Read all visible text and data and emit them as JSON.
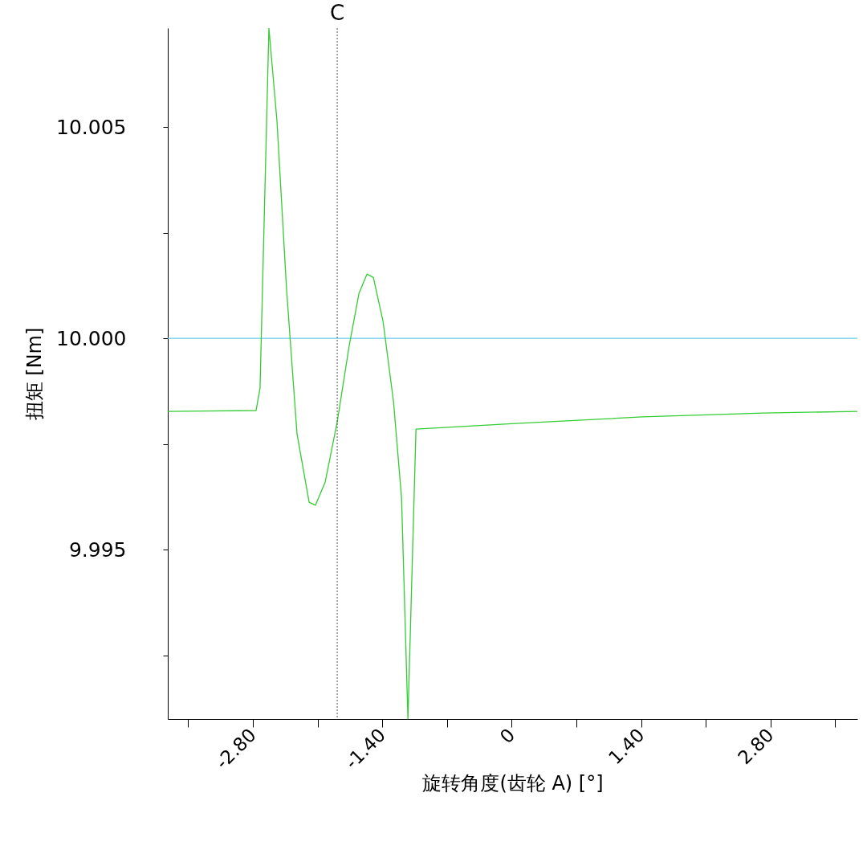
{
  "chart_data": {
    "type": "line",
    "xlabel": "旋转角度(齿轮 A) [°]",
    "ylabel": "扭矩 [Nm]",
    "xlim": [
      -3.72,
      3.74
    ],
    "ylim": [
      9.99099,
      10.00734
    ],
    "xticks": [
      {
        "value": -3.5,
        "label": null
      },
      {
        "value": -2.8,
        "label": "-2.80"
      },
      {
        "value": -2.1,
        "label": null
      },
      {
        "value": -1.4,
        "label": "-1.40"
      },
      {
        "value": -0.7,
        "label": null
      },
      0,
      {
        "value": 0.7,
        "label": null
      },
      {
        "value": 1.4,
        "label": "1.40"
      },
      {
        "value": 2.1,
        "label": null
      },
      {
        "value": 2.8,
        "label": "2.80"
      },
      {
        "value": 3.5,
        "label": null
      }
    ],
    "yticks": [
      {
        "value": 9.9925,
        "label": null
      },
      9.995,
      {
        "value": 9.9975,
        "label": null
      },
      {
        "value": 10,
        "label": "10.000"
      },
      {
        "value": 10.0025,
        "label": null
      },
      10.005
    ],
    "grid": false,
    "legend": false,
    "line_style": "solid",
    "marker": "none",
    "ref_lines": [
      {
        "axis": "x",
        "value": -1.887,
        "label": "C",
        "color": "#555555",
        "line_style": "dotted"
      }
    ],
    "series": [
      {
        "color": "#66ccee",
        "x": [
          -3.72,
          -1.4,
          0,
          3.74
        ],
        "values": [
          10.0,
          10.0,
          10.0,
          10.0
        ]
      },
      {
        "color": "#33cc33",
        "x": [
          -3.72,
          -2.765,
          -2.722,
          -2.626,
          -2.539,
          -2.435,
          -2.322,
          -2.191,
          -2.122,
          -2.017,
          -1.887,
          -1.757,
          -1.652,
          -1.565,
          -1.496,
          -1.391,
          -1.278,
          -1.191,
          -1.122,
          -1.035,
          0,
          1.417,
          2.722,
          3.74
        ],
        "values": [
          9.99827,
          9.99829,
          9.99882,
          10.00734,
          10.00515,
          10.00116,
          9.99774,
          9.99612,
          9.99605,
          9.9966,
          9.99802,
          9.99983,
          10.00106,
          10.00152,
          10.00144,
          10.0004,
          9.9985,
          9.99622,
          9.99099,
          9.99785,
          9.99798,
          9.99814,
          9.99823,
          9.99827
        ]
      }
    ]
  }
}
